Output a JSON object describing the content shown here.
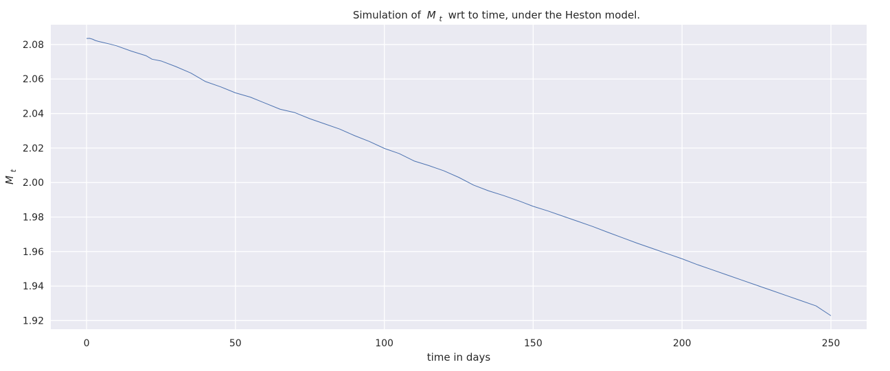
{
  "chart_data": {
    "type": "line",
    "title_prefix": "Simulation of",
    "title_var": "M",
    "title_sub": "t",
    "title_suffix": "wrt to time, under the Heston model.",
    "xlabel": "time in days",
    "ylabel_var": "M",
    "ylabel_sub": "t",
    "xlim": [
      -12,
      262
    ],
    "ylim": [
      1.915,
      2.0915
    ],
    "xticks": [
      0,
      50,
      100,
      150,
      200,
      250
    ],
    "yticks": [
      1.92,
      1.94,
      1.96,
      1.98,
      2.0,
      2.02,
      2.04,
      2.06,
      2.08
    ],
    "ytick_labels": [
      "1.92",
      "1.94",
      "1.96",
      "1.98",
      "2.00",
      "2.02",
      "2.04",
      "2.06",
      "2.08"
    ],
    "grid": true,
    "colors": {
      "background": "#eaeaf2",
      "line": "#4c72b0",
      "grid": "#ffffff"
    },
    "series": [
      {
        "x": [
          0,
          1,
          2,
          3,
          4,
          5,
          8,
          10,
          15,
          20,
          22,
          25,
          30,
          35,
          40,
          45,
          50,
          55,
          60,
          65,
          70,
          75,
          80,
          85,
          90,
          95,
          100,
          105,
          110,
          115,
          120,
          125,
          130,
          135,
          140,
          145,
          150,
          155,
          160,
          165,
          170,
          175,
          180,
          185,
          190,
          195,
          200,
          205,
          210,
          215,
          220,
          225,
          230,
          235,
          240,
          245,
          250
        ],
        "y": [
          2.0835,
          2.0836,
          2.0831,
          2.0823,
          2.0818,
          2.0814,
          2.0802,
          2.0793,
          2.0762,
          2.0735,
          2.0715,
          2.0705,
          2.0672,
          2.0635,
          2.0585,
          2.0555,
          2.052,
          2.0495,
          2.046,
          2.0425,
          2.0405,
          2.037,
          2.034,
          2.031,
          2.0272,
          2.0238,
          2.0198,
          2.0168,
          2.0125,
          2.0098,
          2.0068,
          2.003,
          1.9985,
          1.9952,
          1.9925,
          1.9895,
          1.9862,
          1.9835,
          1.9805,
          1.9775,
          1.9745,
          1.9712,
          1.968,
          1.9648,
          1.9618,
          1.9588,
          1.9558,
          1.9525,
          1.9495,
          1.9465,
          1.9435,
          1.9405,
          1.9375,
          1.9345,
          1.9315,
          1.9285,
          1.9228
        ]
      }
    ]
  }
}
